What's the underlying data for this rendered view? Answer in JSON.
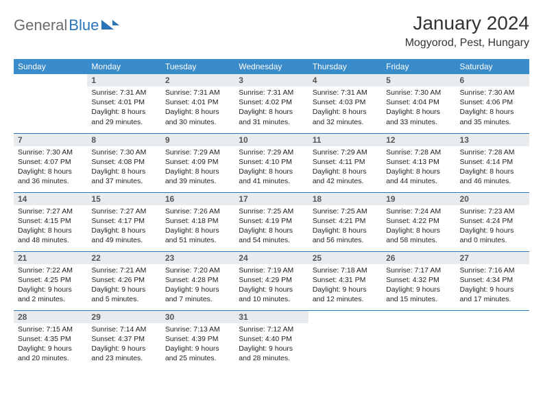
{
  "logo": {
    "gray": "General",
    "blue": "Blue"
  },
  "title": "January 2024",
  "location": "Mogyorod, Pest, Hungary",
  "colors": {
    "header_bg": "#3a8bc9",
    "row_border": "#2a74b8",
    "daynum_bg": "#e9ecef",
    "logo_gray": "#6b6b6b",
    "logo_blue": "#2a74b8"
  },
  "weekdays": [
    "Sunday",
    "Monday",
    "Tuesday",
    "Wednesday",
    "Thursday",
    "Friday",
    "Saturday"
  ],
  "weeks": [
    [
      {
        "n": "",
        "sr": "",
        "ss": "",
        "dl1": "",
        "dl2": ""
      },
      {
        "n": "1",
        "sr": "Sunrise: 7:31 AM",
        "ss": "Sunset: 4:01 PM",
        "dl1": "Daylight: 8 hours",
        "dl2": "and 29 minutes."
      },
      {
        "n": "2",
        "sr": "Sunrise: 7:31 AM",
        "ss": "Sunset: 4:01 PM",
        "dl1": "Daylight: 8 hours",
        "dl2": "and 30 minutes."
      },
      {
        "n": "3",
        "sr": "Sunrise: 7:31 AM",
        "ss": "Sunset: 4:02 PM",
        "dl1": "Daylight: 8 hours",
        "dl2": "and 31 minutes."
      },
      {
        "n": "4",
        "sr": "Sunrise: 7:31 AM",
        "ss": "Sunset: 4:03 PM",
        "dl1": "Daylight: 8 hours",
        "dl2": "and 32 minutes."
      },
      {
        "n": "5",
        "sr": "Sunrise: 7:30 AM",
        "ss": "Sunset: 4:04 PM",
        "dl1": "Daylight: 8 hours",
        "dl2": "and 33 minutes."
      },
      {
        "n": "6",
        "sr": "Sunrise: 7:30 AM",
        "ss": "Sunset: 4:06 PM",
        "dl1": "Daylight: 8 hours",
        "dl2": "and 35 minutes."
      }
    ],
    [
      {
        "n": "7",
        "sr": "Sunrise: 7:30 AM",
        "ss": "Sunset: 4:07 PM",
        "dl1": "Daylight: 8 hours",
        "dl2": "and 36 minutes."
      },
      {
        "n": "8",
        "sr": "Sunrise: 7:30 AM",
        "ss": "Sunset: 4:08 PM",
        "dl1": "Daylight: 8 hours",
        "dl2": "and 37 minutes."
      },
      {
        "n": "9",
        "sr": "Sunrise: 7:29 AM",
        "ss": "Sunset: 4:09 PM",
        "dl1": "Daylight: 8 hours",
        "dl2": "and 39 minutes."
      },
      {
        "n": "10",
        "sr": "Sunrise: 7:29 AM",
        "ss": "Sunset: 4:10 PM",
        "dl1": "Daylight: 8 hours",
        "dl2": "and 41 minutes."
      },
      {
        "n": "11",
        "sr": "Sunrise: 7:29 AM",
        "ss": "Sunset: 4:11 PM",
        "dl1": "Daylight: 8 hours",
        "dl2": "and 42 minutes."
      },
      {
        "n": "12",
        "sr": "Sunrise: 7:28 AM",
        "ss": "Sunset: 4:13 PM",
        "dl1": "Daylight: 8 hours",
        "dl2": "and 44 minutes."
      },
      {
        "n": "13",
        "sr": "Sunrise: 7:28 AM",
        "ss": "Sunset: 4:14 PM",
        "dl1": "Daylight: 8 hours",
        "dl2": "and 46 minutes."
      }
    ],
    [
      {
        "n": "14",
        "sr": "Sunrise: 7:27 AM",
        "ss": "Sunset: 4:15 PM",
        "dl1": "Daylight: 8 hours",
        "dl2": "and 48 minutes."
      },
      {
        "n": "15",
        "sr": "Sunrise: 7:27 AM",
        "ss": "Sunset: 4:17 PM",
        "dl1": "Daylight: 8 hours",
        "dl2": "and 49 minutes."
      },
      {
        "n": "16",
        "sr": "Sunrise: 7:26 AM",
        "ss": "Sunset: 4:18 PM",
        "dl1": "Daylight: 8 hours",
        "dl2": "and 51 minutes."
      },
      {
        "n": "17",
        "sr": "Sunrise: 7:25 AM",
        "ss": "Sunset: 4:19 PM",
        "dl1": "Daylight: 8 hours",
        "dl2": "and 54 minutes."
      },
      {
        "n": "18",
        "sr": "Sunrise: 7:25 AM",
        "ss": "Sunset: 4:21 PM",
        "dl1": "Daylight: 8 hours",
        "dl2": "and 56 minutes."
      },
      {
        "n": "19",
        "sr": "Sunrise: 7:24 AM",
        "ss": "Sunset: 4:22 PM",
        "dl1": "Daylight: 8 hours",
        "dl2": "and 58 minutes."
      },
      {
        "n": "20",
        "sr": "Sunrise: 7:23 AM",
        "ss": "Sunset: 4:24 PM",
        "dl1": "Daylight: 9 hours",
        "dl2": "and 0 minutes."
      }
    ],
    [
      {
        "n": "21",
        "sr": "Sunrise: 7:22 AM",
        "ss": "Sunset: 4:25 PM",
        "dl1": "Daylight: 9 hours",
        "dl2": "and 2 minutes."
      },
      {
        "n": "22",
        "sr": "Sunrise: 7:21 AM",
        "ss": "Sunset: 4:26 PM",
        "dl1": "Daylight: 9 hours",
        "dl2": "and 5 minutes."
      },
      {
        "n": "23",
        "sr": "Sunrise: 7:20 AM",
        "ss": "Sunset: 4:28 PM",
        "dl1": "Daylight: 9 hours",
        "dl2": "and 7 minutes."
      },
      {
        "n": "24",
        "sr": "Sunrise: 7:19 AM",
        "ss": "Sunset: 4:29 PM",
        "dl1": "Daylight: 9 hours",
        "dl2": "and 10 minutes."
      },
      {
        "n": "25",
        "sr": "Sunrise: 7:18 AM",
        "ss": "Sunset: 4:31 PM",
        "dl1": "Daylight: 9 hours",
        "dl2": "and 12 minutes."
      },
      {
        "n": "26",
        "sr": "Sunrise: 7:17 AM",
        "ss": "Sunset: 4:32 PM",
        "dl1": "Daylight: 9 hours",
        "dl2": "and 15 minutes."
      },
      {
        "n": "27",
        "sr": "Sunrise: 7:16 AM",
        "ss": "Sunset: 4:34 PM",
        "dl1": "Daylight: 9 hours",
        "dl2": "and 17 minutes."
      }
    ],
    [
      {
        "n": "28",
        "sr": "Sunrise: 7:15 AM",
        "ss": "Sunset: 4:35 PM",
        "dl1": "Daylight: 9 hours",
        "dl2": "and 20 minutes."
      },
      {
        "n": "29",
        "sr": "Sunrise: 7:14 AM",
        "ss": "Sunset: 4:37 PM",
        "dl1": "Daylight: 9 hours",
        "dl2": "and 23 minutes."
      },
      {
        "n": "30",
        "sr": "Sunrise: 7:13 AM",
        "ss": "Sunset: 4:39 PM",
        "dl1": "Daylight: 9 hours",
        "dl2": "and 25 minutes."
      },
      {
        "n": "31",
        "sr": "Sunrise: 7:12 AM",
        "ss": "Sunset: 4:40 PM",
        "dl1": "Daylight: 9 hours",
        "dl2": "and 28 minutes."
      },
      {
        "n": "",
        "sr": "",
        "ss": "",
        "dl1": "",
        "dl2": ""
      },
      {
        "n": "",
        "sr": "",
        "ss": "",
        "dl1": "",
        "dl2": ""
      },
      {
        "n": "",
        "sr": "",
        "ss": "",
        "dl1": "",
        "dl2": ""
      }
    ]
  ]
}
